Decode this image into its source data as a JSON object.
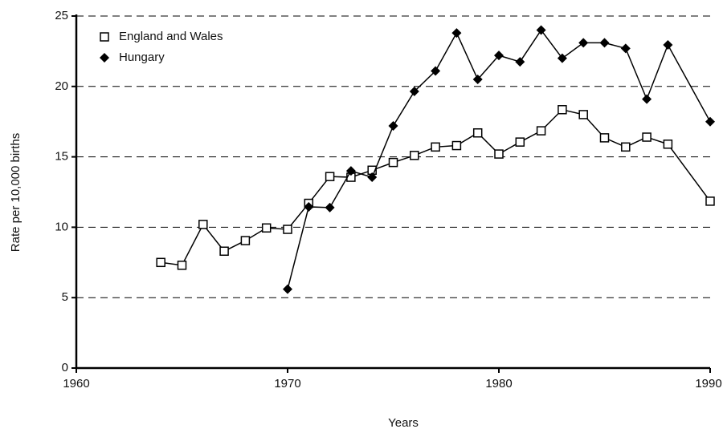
{
  "chart_data": {
    "type": "line",
    "xlabel": "Years",
    "ylabel": "Rate per 10,000 births",
    "x": [
      1964,
      1965,
      1966,
      1967,
      1968,
      1969,
      1970,
      1971,
      1972,
      1973,
      1974,
      1975,
      1976,
      1977,
      1978,
      1979,
      1980,
      1981,
      1982,
      1983,
      1984,
      1985,
      1986,
      1987,
      1988,
      1990
    ],
    "series": [
      {
        "name": "England and Wales",
        "color": "#000000",
        "marker": "square",
        "values": [
          7.5,
          7.3,
          10.2,
          8.3,
          9.05,
          9.95,
          9.85,
          11.7,
          13.6,
          13.55,
          14.05,
          14.6,
          15.1,
          15.7,
          15.8,
          16.7,
          15.2,
          16.05,
          16.85,
          18.35,
          18.0,
          16.35,
          15.7,
          16.4,
          15.9,
          11.85
        ]
      },
      {
        "name": "Hungary",
        "color": "#000000",
        "marker": "diamond",
        "values": [
          null,
          null,
          null,
          null,
          null,
          null,
          5.6,
          11.45,
          11.4,
          14.0,
          13.55,
          17.2,
          19.65,
          21.1,
          23.8,
          20.5,
          22.2,
          21.75,
          24.0,
          22.0,
          23.1,
          23.1,
          22.7,
          19.1,
          22.95,
          17.5
        ]
      }
    ],
    "xlim": [
      1960,
      1990
    ],
    "xticks": [
      1960,
      1970,
      1980,
      1990
    ],
    "ylim": [
      0,
      25
    ],
    "yticks": [
      0,
      5,
      10,
      15,
      20,
      25
    ],
    "grid": true,
    "legend": "upper left"
  }
}
